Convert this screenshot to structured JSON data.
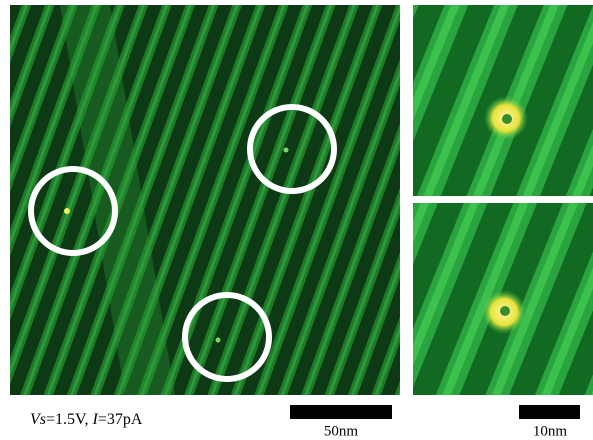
{
  "caption": {
    "parts": [
      "Vs",
      "=1.5V, ",
      "I",
      "=37pA"
    ]
  },
  "scale_bars": [
    {
      "label": "50nm"
    },
    {
      "label": "10nm"
    }
  ]
}
